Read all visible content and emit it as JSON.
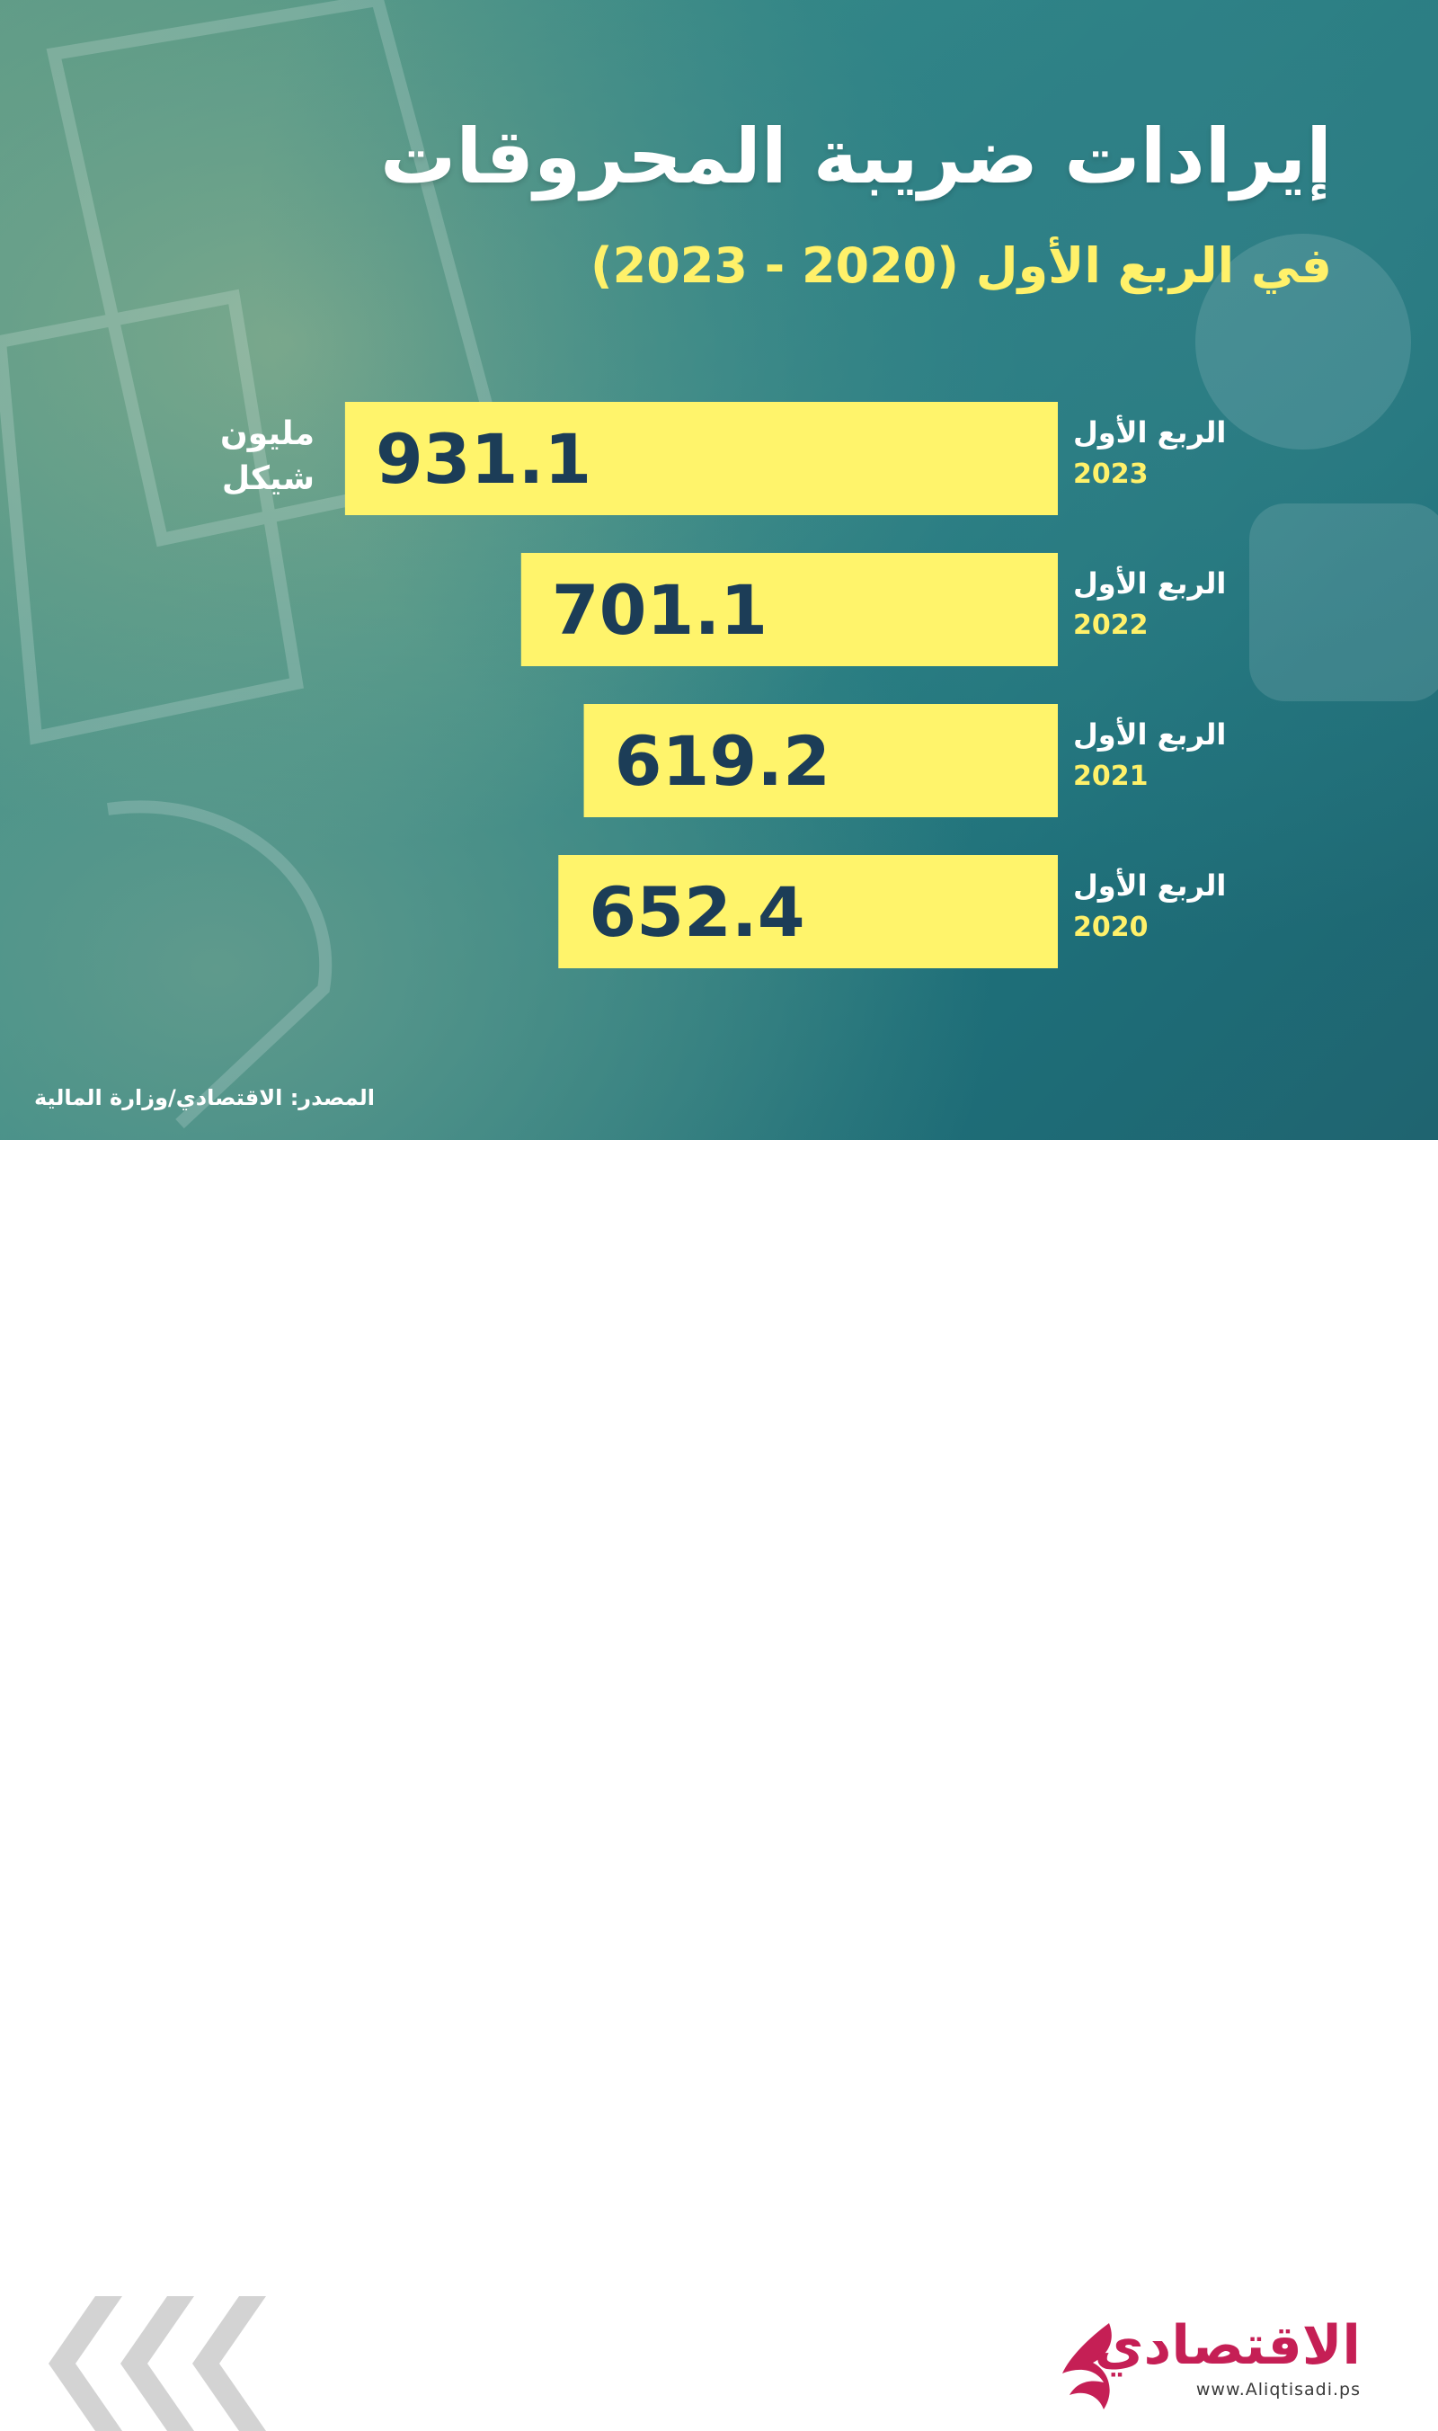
{
  "header": {
    "title": "إيرادات ضريبة المحروقات",
    "subtitle": "في الربع الأول (2020 - 2023)"
  },
  "chart_data": {
    "type": "bar",
    "orientation": "horizontal",
    "title": "إيرادات ضريبة المحروقات",
    "subtitle": "في الربع الأول (2020 - 2023)",
    "unit": "مليون شيكل",
    "categories": [
      {
        "quarter": "الربع الأول",
        "year": "2023"
      },
      {
        "quarter": "الربع الأول",
        "year": "2022"
      },
      {
        "quarter": "الربع الأول",
        "year": "2021"
      },
      {
        "quarter": "الربع الأول",
        "year": "2020"
      }
    ],
    "values": [
      931.1,
      701.1,
      619.2,
      652.4
    ],
    "value_labels": [
      "931.1",
      "701.1",
      "619.2",
      "652.4"
    ],
    "xlim": [
      0,
      1000
    ],
    "grid": false,
    "legend": "none",
    "bar_color": "#fff46b",
    "value_color": "#1c3d57"
  },
  "unit_label": {
    "line1": "مليون",
    "line2": "شيكل"
  },
  "source": "المصدر: الاقتصادي/وزارة المالية",
  "footer": {
    "logo_text": "الاقتصادي",
    "logo_url": "www.Aliqtisadi.ps",
    "brand_color": "#c51f55"
  },
  "icons": {
    "arrows": "chevron-left-arrows-icon",
    "logo": "aliqtisadi-logo-icon"
  }
}
